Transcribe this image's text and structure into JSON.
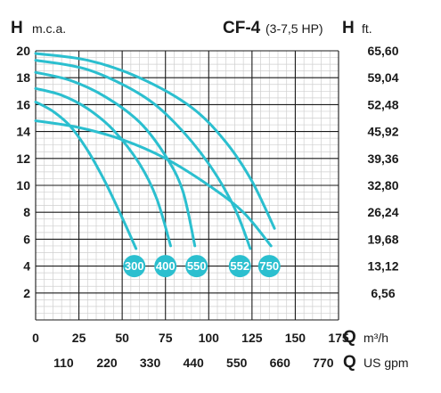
{
  "chart_data": {
    "type": "line",
    "title": "CF-4",
    "subtitle": "(3-7,5 HP)",
    "ylabel_left": {
      "symbol": "H",
      "unit": "m.c.a."
    },
    "ylabel_right": {
      "symbol": "H",
      "unit": "ft."
    },
    "xlabel_top": {
      "symbol": "Q",
      "unit": "m³/h"
    },
    "xlabel_bottom": {
      "symbol": "Q",
      "unit": "US gpm"
    },
    "xlim": [
      0,
      175
    ],
    "ylim": [
      0,
      20
    ],
    "grid": true,
    "x_ticks": [
      "0",
      "25",
      "50",
      "75",
      "100",
      "125",
      "150",
      "175"
    ],
    "x_ticks_gpm": [
      "110",
      "220",
      "330",
      "440",
      "550",
      "660",
      "770"
    ],
    "y_ticks": [
      "2",
      "4",
      "6",
      "8",
      "10",
      "12",
      "14",
      "16",
      "18",
      "20"
    ],
    "y_ticks_ft": [
      "6,56",
      "13,12",
      "19,68",
      "26,24",
      "32,80",
      "39,36",
      "45,92",
      "52,48",
      "59,04",
      "65,60"
    ],
    "series_color": "#2bbfcf",
    "series": [
      {
        "name": "300",
        "x": [
          0,
          10,
          20,
          30,
          40,
          50,
          58
        ],
        "y": [
          16.2,
          15.5,
          14.4,
          12.6,
          10.3,
          7.6,
          5.3
        ]
      },
      {
        "name": "400",
        "x": [
          0,
          15,
          30,
          45,
          60,
          70,
          78
        ],
        "y": [
          17.2,
          16.7,
          15.7,
          14.1,
          11.6,
          9.0,
          5.5
        ]
      },
      {
        "name": "550",
        "x": [
          0,
          20,
          40,
          60,
          75,
          85,
          92
        ],
        "y": [
          18.4,
          17.8,
          16.6,
          14.7,
          12.2,
          9.6,
          5.5
        ]
      },
      {
        "name": "552",
        "x": [
          0,
          30,
          60,
          80,
          100,
          115,
          124
        ],
        "y": [
          19.3,
          18.6,
          16.8,
          14.7,
          11.6,
          8.3,
          5.3
        ]
      },
      {
        "name": "750",
        "x": [
          0,
          30,
          60,
          90,
          110,
          125,
          138
        ],
        "y": [
          19.8,
          19.3,
          18.0,
          15.8,
          13.2,
          10.3,
          6.8
        ]
      },
      {
        "name": "",
        "x": [
          0,
          25,
          50,
          75,
          100,
          120,
          136
        ],
        "y": [
          14.8,
          14.3,
          13.4,
          12.0,
          10.0,
          8.0,
          5.5
        ]
      }
    ],
    "labels": [
      {
        "text": "300",
        "x": 57,
        "y": 4
      },
      {
        "text": "400",
        "x": 75,
        "y": 4
      },
      {
        "text": "550",
        "x": 93,
        "y": 4
      },
      {
        "text": "552",
        "x": 118,
        "y": 4
      },
      {
        "text": "750",
        "x": 135,
        "y": 4
      }
    ]
  }
}
